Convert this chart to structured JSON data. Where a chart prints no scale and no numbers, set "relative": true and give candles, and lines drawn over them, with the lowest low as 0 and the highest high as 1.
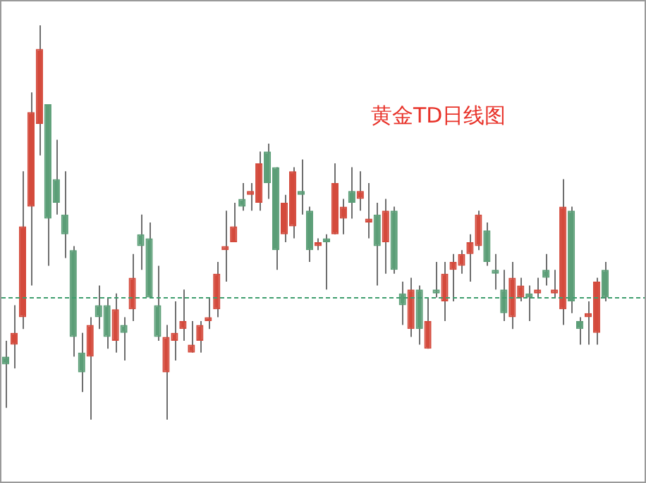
{
  "chart_data": {
    "type": "candlestick",
    "title": "黄金TD日线图",
    "relative": true,
    "categories": [
      null,
      null,
      null,
      null,
      null,
      null,
      null,
      null,
      null,
      null,
      null,
      null,
      null,
      null,
      null,
      null,
      null,
      null,
      null,
      null,
      null,
      null,
      null,
      null,
      null,
      null,
      null,
      null,
      null,
      null,
      null,
      null,
      null,
      null,
      null,
      null,
      null,
      null,
      null,
      null,
      null,
      null,
      null,
      null,
      null,
      null,
      null,
      null,
      null,
      null,
      null,
      null,
      null,
      null,
      null,
      null,
      null,
      null,
      null,
      null,
      null,
      null,
      null,
      null,
      null,
      null,
      null,
      null,
      null,
      null,
      null,
      null
    ],
    "ohlc": [
      [
        0.16,
        0.2,
        0.03,
        0.14
      ],
      [
        0.19,
        0.29,
        0.13,
        0.22
      ],
      [
        0.26,
        0.63,
        0.23,
        0.49
      ],
      [
        0.54,
        0.83,
        0.34,
        0.78
      ],
      [
        0.75,
        1,
        0.67,
        0.94
      ],
      [
        0.8,
        0.8,
        0.39,
        0.51
      ],
      [
        0.61,
        0.71,
        0.52,
        0.55
      ],
      [
        0.52,
        0.63,
        0.41,
        0.47
      ],
      [
        0.43,
        0.44,
        0.16,
        0.21
      ],
      [
        0.17,
        0.22,
        0.07,
        0.12
      ],
      [
        0.16,
        0.26,
        0,
        0.24
      ],
      [
        0.29,
        0.34,
        0.23,
        0.26
      ],
      [
        0.29,
        0.31,
        0.18,
        0.21
      ],
      [
        0.2,
        0.32,
        0.17,
        0.28
      ],
      [
        0.24,
        0.26,
        0.15,
        0.22
      ],
      [
        0.28,
        0.42,
        0.25,
        0.36
      ],
      [
        0.47,
        0.52,
        0.38,
        0.44
      ],
      [
        0.46,
        0.5,
        0.31,
        0.31
      ],
      [
        0.29,
        0.39,
        0.2,
        0.21
      ],
      [
        0.12,
        0.24,
        0,
        0.21
      ],
      [
        0.2,
        0.3,
        0.15,
        0.22
      ],
      [
        0.23,
        0.33,
        0.2,
        0.25
      ],
      [
        0.17,
        0.25,
        0.17,
        0.19
      ],
      [
        0.2,
        0.25,
        0.17,
        0.24
      ],
      [
        0.25,
        0.31,
        0.23,
        0.26
      ],
      [
        0.28,
        0.4,
        0.26,
        0.37
      ],
      [
        0.43,
        0.53,
        0.35,
        0.44
      ],
      [
        0.45,
        0.55,
        0.45,
        0.49
      ],
      [
        0.56,
        0.6,
        0.53,
        0.54
      ],
      [
        0.57,
        0.6,
        0.53,
        0.58
      ],
      [
        0.55,
        0.68,
        0.53,
        0.65
      ],
      [
        0.68,
        0.7,
        0.56,
        0.6
      ],
      [
        0.64,
        0.64,
        0.38,
        0.43
      ],
      [
        0.47,
        0.57,
        0.45,
        0.55
      ],
      [
        0.49,
        0.64,
        0.46,
        0.63
      ],
      [
        0.58,
        0.66,
        0.52,
        0.57
      ],
      [
        0.53,
        0.54,
        0.4,
        0.43
      ],
      [
        0.44,
        0.46,
        0.43,
        0.45
      ],
      [
        0.46,
        0.47,
        0.33,
        0.45
      ],
      [
        0.47,
        0.65,
        0.47,
        0.6
      ],
      [
        0.51,
        0.56,
        0.47,
        0.54
      ],
      [
        0.58,
        0.64,
        0.51,
        0.55
      ],
      [
        0.56,
        0.63,
        0.53,
        0.58
      ],
      [
        0.5,
        0.6,
        0.46,
        0.51
      ],
      [
        0.52,
        0.55,
        0.34,
        0.44
      ],
      [
        0.45,
        0.56,
        0.37,
        0.53
      ],
      [
        0.53,
        0.54,
        0.37,
        0.38
      ],
      [
        0.32,
        0.35,
        0.24,
        0.29
      ],
      [
        0.23,
        0.36,
        0.21,
        0.33
      ],
      [
        0.33,
        0.34,
        0.19,
        0.23
      ],
      [
        0.18,
        0.31,
        0.18,
        0.25
      ],
      [
        0.33,
        0.4,
        0.31,
        0.32
      ],
      [
        0.3,
        0.4,
        0.25,
        0.37
      ],
      [
        0.38,
        0.42,
        0.3,
        0.4
      ],
      [
        0.39,
        0.43,
        0.37,
        0.42
      ],
      [
        0.42,
        0.47,
        0.35,
        0.45
      ],
      [
        0.44,
        0.53,
        0.43,
        0.52
      ],
      [
        0.48,
        0.5,
        0.39,
        0.4
      ],
      [
        0.38,
        0.42,
        0.33,
        0.37
      ],
      [
        0.33,
        0.38,
        0.25,
        0.27
      ],
      [
        0.26,
        0.4,
        0.23,
        0.36
      ],
      [
        0.31,
        0.36,
        0.3,
        0.34
      ],
      [
        0.32,
        0.34,
        0.25,
        0.31
      ],
      [
        0.32,
        0.36,
        0.31,
        0.33
      ],
      [
        0.38,
        0.42,
        0.34,
        0.36
      ],
      [
        0.32,
        0.38,
        0.31,
        0.33
      ],
      [
        0.28,
        0.61,
        0.24,
        0.54
      ],
      [
        0.53,
        0.54,
        0.27,
        0.3
      ],
      [
        0.25,
        0.26,
        0.19,
        0.23
      ],
      [
        0.26,
        0.3,
        0.19,
        0.27
      ],
      [
        0.22,
        0.36,
        0.19,
        0.35
      ],
      [
        0.38,
        0.4,
        0.3,
        0.31
      ]
    ],
    "colors": [
      "#5b9e77",
      "#d44a3c",
      "#d44a3c",
      "#d44a3c",
      "#d44a3c",
      "#5b9e77",
      "#5b9e77",
      "#5b9e77",
      "#5b9e77",
      "#5b9e77",
      "#d44a3c",
      "#5b9e77",
      "#5b9e77",
      "#d44a3c",
      "#5b9e77",
      "#d44a3c",
      "#5b9e77",
      "#5b9e77",
      "#5b9e77",
      "#d44a3c",
      "#d44a3c",
      "#d44a3c",
      "#d44a3c",
      "#d44a3c",
      "#d44a3c",
      "#d44a3c",
      "#d44a3c",
      "#d44a3c",
      "#5b9e77",
      "#d44a3c",
      "#d44a3c",
      "#5b9e77",
      "#5b9e77",
      "#d44a3c",
      "#d44a3c",
      "#5b9e77",
      "#5b9e77",
      "#d44a3c",
      "#5b9e77",
      "#d44a3c",
      "#d44a3c",
      "#5b9e77",
      "#d44a3c",
      "#d44a3c",
      "#5b9e77",
      "#d44a3c",
      "#5b9e77",
      "#5b9e77",
      "#d44a3c",
      "#5b9e77",
      "#d44a3c",
      "#5b9e77",
      "#d44a3c",
      "#d44a3c",
      "#d44a3c",
      "#d44a3c",
      "#d44a3c",
      "#5b9e77",
      "#5b9e77",
      "#5b9e77",
      "#d44a3c",
      "#d44a3c",
      "#5b9e77",
      "#d44a3c",
      "#5b9e77",
      "#d44a3c",
      "#d44a3c",
      "#5b9e77",
      "#5b9e77",
      "#d44a3c",
      "#d44a3c",
      "#5b9e77"
    ],
    "ref_lines": [
      {
        "axis": "y",
        "value": 0.31,
        "color": "#3f9e6e",
        "line_style": "dashed"
      }
    ]
  }
}
